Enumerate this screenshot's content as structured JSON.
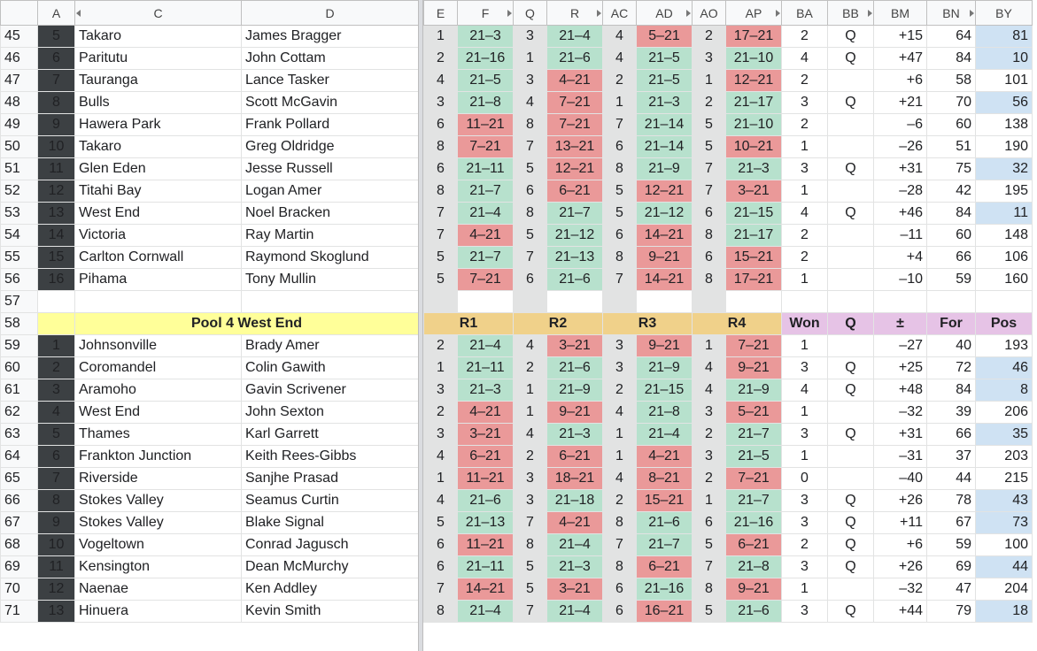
{
  "colors": {
    "green": "#b7e1cd",
    "red": "#ea9999",
    "gray": "#e2e3e3",
    "blue": "#cfe2f3",
    "yellow": "#ffff99",
    "tan": "#f0d18a",
    "purple": "#e6c3e6"
  },
  "left_columns": [
    "A",
    "C",
    "D"
  ],
  "right_columns": [
    "E",
    "F",
    "Q",
    "R",
    "AC",
    "AD",
    "AO",
    "AP",
    "BA",
    "BB",
    "BM",
    "BN",
    "BY"
  ],
  "rows": [
    {
      "rn": "45",
      "kind": "data",
      "pos": "5",
      "club": "Takaro",
      "name": "James Bragger",
      "cells": [
        "1",
        "21–3",
        "3",
        "21–4",
        "4",
        "5–21",
        "2",
        "17–21",
        "2",
        "Q",
        "+15",
        "64",
        "81"
      ],
      "r": [
        "g",
        "g",
        "r",
        "r"
      ],
      "blue": true
    },
    {
      "rn": "46",
      "kind": "data",
      "pos": "6",
      "club": "Paritutu",
      "name": "John Cottam",
      "cells": [
        "2",
        "21–16",
        "1",
        "21–6",
        "4",
        "21–5",
        "3",
        "21–10",
        "4",
        "Q",
        "+47",
        "84",
        "10"
      ],
      "r": [
        "g",
        "g",
        "g",
        "g"
      ],
      "blue": true
    },
    {
      "rn": "47",
      "kind": "data",
      "pos": "7",
      "club": "Tauranga",
      "name": "Lance Tasker",
      "cells": [
        "4",
        "21–5",
        "3",
        "4–21",
        "2",
        "21–5",
        "1",
        "12–21",
        "2",
        "",
        "+6",
        "58",
        "101"
      ],
      "r": [
        "g",
        "r",
        "g",
        "r"
      ],
      "blue": false
    },
    {
      "rn": "48",
      "kind": "data",
      "pos": "8",
      "club": "Bulls",
      "name": "Scott McGavin",
      "cells": [
        "3",
        "21–8",
        "4",
        "7–21",
        "1",
        "21–3",
        "2",
        "21–17",
        "3",
        "Q",
        "+21",
        "70",
        "56"
      ],
      "r": [
        "g",
        "r",
        "g",
        "g"
      ],
      "blue": true
    },
    {
      "rn": "49",
      "kind": "data",
      "pos": "9",
      "club": "Hawera Park",
      "name": "Frank Pollard",
      "cells": [
        "6",
        "11–21",
        "8",
        "7–21",
        "7",
        "21–14",
        "5",
        "21–10",
        "2",
        "",
        "–6",
        "60",
        "138"
      ],
      "r": [
        "r",
        "r",
        "g",
        "g"
      ],
      "blue": false
    },
    {
      "rn": "50",
      "kind": "data",
      "pos": "10",
      "club": "Takaro",
      "name": "Greg Oldridge",
      "cells": [
        "8",
        "7–21",
        "7",
        "13–21",
        "6",
        "21–14",
        "5",
        "10–21",
        "1",
        "",
        "–26",
        "51",
        "190"
      ],
      "r": [
        "r",
        "r",
        "g",
        "r"
      ],
      "blue": false
    },
    {
      "rn": "51",
      "kind": "data",
      "pos": "11",
      "club": "Glen Eden",
      "name": "Jesse Russell",
      "cells": [
        "6",
        "21–11",
        "5",
        "12–21",
        "8",
        "21–9",
        "7",
        "21–3",
        "3",
        "Q",
        "+31",
        "75",
        "32"
      ],
      "r": [
        "g",
        "r",
        "g",
        "g"
      ],
      "blue": true
    },
    {
      "rn": "52",
      "kind": "data",
      "pos": "12",
      "club": "Titahi Bay",
      "name": "Logan Amer",
      "cells": [
        "8",
        "21–7",
        "6",
        "6–21",
        "5",
        "12–21",
        "7",
        "3–21",
        "1",
        "",
        "–28",
        "42",
        "195"
      ],
      "r": [
        "g",
        "r",
        "r",
        "r"
      ],
      "blue": false
    },
    {
      "rn": "53",
      "kind": "data",
      "pos": "13",
      "club": "West End",
      "name": "Noel Bracken",
      "cells": [
        "7",
        "21–4",
        "8",
        "21–7",
        "5",
        "21–12",
        "6",
        "21–15",
        "4",
        "Q",
        "+46",
        "84",
        "11"
      ],
      "r": [
        "g",
        "g",
        "g",
        "g"
      ],
      "blue": true
    },
    {
      "rn": "54",
      "kind": "data",
      "pos": "14",
      "club": "Victoria",
      "name": "Ray Martin",
      "cells": [
        "7",
        "4–21",
        "5",
        "21–12",
        "6",
        "14–21",
        "8",
        "21–17",
        "2",
        "",
        "–11",
        "60",
        "148"
      ],
      "r": [
        "r",
        "g",
        "r",
        "g"
      ],
      "blue": false
    },
    {
      "rn": "55",
      "kind": "data",
      "pos": "15",
      "club": "Carlton Cornwall",
      "name": "Raymond Skoglund",
      "cells": [
        "5",
        "21–7",
        "7",
        "21–13",
        "8",
        "9–21",
        "6",
        "15–21",
        "2",
        "",
        "+4",
        "66",
        "106"
      ],
      "r": [
        "g",
        "g",
        "r",
        "r"
      ],
      "blue": false
    },
    {
      "rn": "56",
      "kind": "data",
      "pos": "16",
      "club": "Pihama",
      "name": "Tony Mullin",
      "cells": [
        "5",
        "7–21",
        "6",
        "21–6",
        "7",
        "14–21",
        "8",
        "17–21",
        "1",
        "",
        "–10",
        "59",
        "160"
      ],
      "r": [
        "r",
        "g",
        "r",
        "r"
      ],
      "blue": false
    },
    {
      "rn": "57",
      "kind": "blank"
    },
    {
      "rn": "58",
      "kind": "header",
      "title": "Pool 4 West End",
      "labels": [
        "R1",
        "R2",
        "R3",
        "R4",
        "Won",
        "Q",
        "±",
        "For",
        "Pos"
      ]
    },
    {
      "rn": "59",
      "kind": "data",
      "pos": "1",
      "club": "Johnsonville",
      "name": "Brady Amer",
      "cells": [
        "2",
        "21–4",
        "4",
        "3–21",
        "3",
        "9–21",
        "1",
        "7–21",
        "1",
        "",
        "–27",
        "40",
        "193"
      ],
      "r": [
        "g",
        "r",
        "r",
        "r"
      ],
      "blue": false
    },
    {
      "rn": "60",
      "kind": "data",
      "pos": "2",
      "club": "Coromandel",
      "name": "Colin Gawith",
      "cells": [
        "1",
        "21–11",
        "2",
        "21–6",
        "3",
        "21–9",
        "4",
        "9–21",
        "3",
        "Q",
        "+25",
        "72",
        "46"
      ],
      "r": [
        "g",
        "g",
        "g",
        "r"
      ],
      "blue": true
    },
    {
      "rn": "61",
      "kind": "data",
      "pos": "3",
      "club": "Aramoho",
      "name": "Gavin Scrivener",
      "cells": [
        "3",
        "21–3",
        "1",
        "21–9",
        "2",
        "21–15",
        "4",
        "21–9",
        "4",
        "Q",
        "+48",
        "84",
        "8"
      ],
      "r": [
        "g",
        "g",
        "g",
        "g"
      ],
      "blue": true
    },
    {
      "rn": "62",
      "kind": "data",
      "pos": "4",
      "club": "West End",
      "name": "John Sexton",
      "cells": [
        "2",
        "4–21",
        "1",
        "9–21",
        "4",
        "21–8",
        "3",
        "5–21",
        "1",
        "",
        "–32",
        "39",
        "206"
      ],
      "r": [
        "r",
        "r",
        "g",
        "r"
      ],
      "blue": false
    },
    {
      "rn": "63",
      "kind": "data",
      "pos": "5",
      "club": "Thames",
      "name": "Karl Garrett",
      "cells": [
        "3",
        "3–21",
        "4",
        "21–3",
        "1",
        "21–4",
        "2",
        "21–7",
        "3",
        "Q",
        "+31",
        "66",
        "35"
      ],
      "r": [
        "r",
        "g",
        "g",
        "g"
      ],
      "blue": true
    },
    {
      "rn": "64",
      "kind": "data",
      "pos": "6",
      "club": "Frankton Junction",
      "name": "Keith Rees-Gibbs",
      "cells": [
        "4",
        "6–21",
        "2",
        "6–21",
        "1",
        "4–21",
        "3",
        "21–5",
        "1",
        "",
        "–31",
        "37",
        "203"
      ],
      "r": [
        "r",
        "r",
        "r",
        "g"
      ],
      "blue": false
    },
    {
      "rn": "65",
      "kind": "data",
      "pos": "7",
      "club": "Riverside",
      "name": "Sanjhe Prasad",
      "cells": [
        "1",
        "11–21",
        "3",
        "18–21",
        "4",
        "8–21",
        "2",
        "7–21",
        "0",
        "",
        "–40",
        "44",
        "215"
      ],
      "r": [
        "r",
        "r",
        "r",
        "r"
      ],
      "blue": false
    },
    {
      "rn": "66",
      "kind": "data",
      "pos": "8",
      "club": "Stokes Valley",
      "name": "Seamus Curtin",
      "cells": [
        "4",
        "21–6",
        "3",
        "21–18",
        "2",
        "15–21",
        "1",
        "21–7",
        "3",
        "Q",
        "+26",
        "78",
        "43"
      ],
      "r": [
        "g",
        "g",
        "r",
        "g"
      ],
      "blue": true
    },
    {
      "rn": "67",
      "kind": "data",
      "pos": "9",
      "club": "Stokes Valley",
      "name": "Blake Signal",
      "cells": [
        "5",
        "21–13",
        "7",
        "4–21",
        "8",
        "21–6",
        "6",
        "21–16",
        "3",
        "Q",
        "+11",
        "67",
        "73"
      ],
      "r": [
        "g",
        "r",
        "g",
        "g"
      ],
      "blue": true
    },
    {
      "rn": "68",
      "kind": "data",
      "pos": "10",
      "club": "Vogeltown",
      "name": "Conrad Jagusch",
      "cells": [
        "6",
        "11–21",
        "8",
        "21–4",
        "7",
        "21–7",
        "5",
        "6–21",
        "2",
        "Q",
        "+6",
        "59",
        "100"
      ],
      "r": [
        "r",
        "g",
        "g",
        "r"
      ],
      "blue": false
    },
    {
      "rn": "69",
      "kind": "data",
      "pos": "11",
      "club": "Kensington",
      "name": "Dean McMurchy",
      "cells": [
        "6",
        "21–11",
        "5",
        "21–3",
        "8",
        "6–21",
        "7",
        "21–8",
        "3",
        "Q",
        "+26",
        "69",
        "44"
      ],
      "r": [
        "g",
        "g",
        "r",
        "g"
      ],
      "blue": true
    },
    {
      "rn": "70",
      "kind": "data",
      "pos": "12",
      "club": "Naenae",
      "name": "Ken Addley",
      "cells": [
        "7",
        "14–21",
        "5",
        "3–21",
        "6",
        "21–16",
        "8",
        "9–21",
        "1",
        "",
        "–32",
        "47",
        "204"
      ],
      "r": [
        "r",
        "r",
        "g",
        "r"
      ],
      "blue": false
    },
    {
      "rn": "71",
      "kind": "data",
      "pos": "13",
      "club": "Hinuera",
      "name": "Kevin Smith",
      "cells": [
        "8",
        "21–4",
        "7",
        "21–4",
        "6",
        "16–21",
        "5",
        "21–6",
        "3",
        "Q",
        "+44",
        "79",
        "18"
      ],
      "r": [
        "g",
        "g",
        "r",
        "g"
      ],
      "blue": true
    }
  ]
}
